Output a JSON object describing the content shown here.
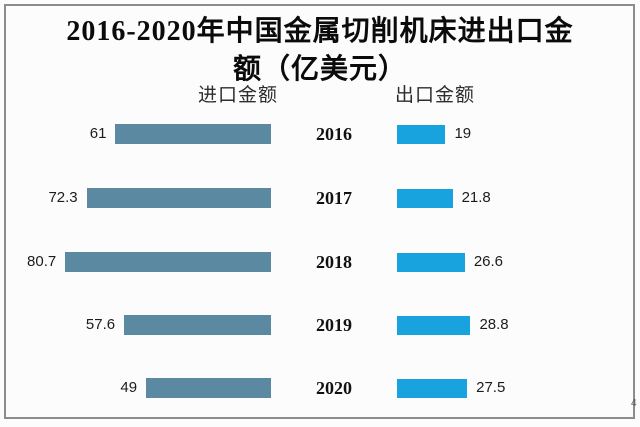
{
  "title": {
    "line1": "2016-2020年中国金属切削机床进出口金",
    "line2": "额（亿美元）"
  },
  "corner_mark": "4",
  "colors": {
    "frame_border": "#8c8c8c",
    "background": "#fdfcfd",
    "import_bar": "#5b89a2",
    "export_bar": "#18a2de",
    "title_text": "#0b0b0b",
    "legend_text": "#2d2d2d",
    "value_text": "#1c1c1c"
  },
  "chart_data": {
    "type": "bar",
    "orientation": "horizontal",
    "layout": "tornado-paired",
    "title": "2016-2020年中国金属切削机床进出口金额（亿美元）",
    "unit": "亿美元",
    "categories": [
      "2016",
      "2017",
      "2018",
      "2019",
      "2020"
    ],
    "series": [
      {
        "name": "进口金额",
        "side": "left",
        "color": "#5b89a2",
        "values": [
          61,
          72.3,
          80.7,
          57.6,
          49
        ]
      },
      {
        "name": "出口金额",
        "side": "right",
        "color": "#18a2de",
        "values": [
          19,
          21.8,
          26.6,
          28.8,
          27.5
        ]
      }
    ],
    "value_labels_visible": true,
    "axis_visible": false,
    "grid": false,
    "legend_position": "top-inside"
  }
}
